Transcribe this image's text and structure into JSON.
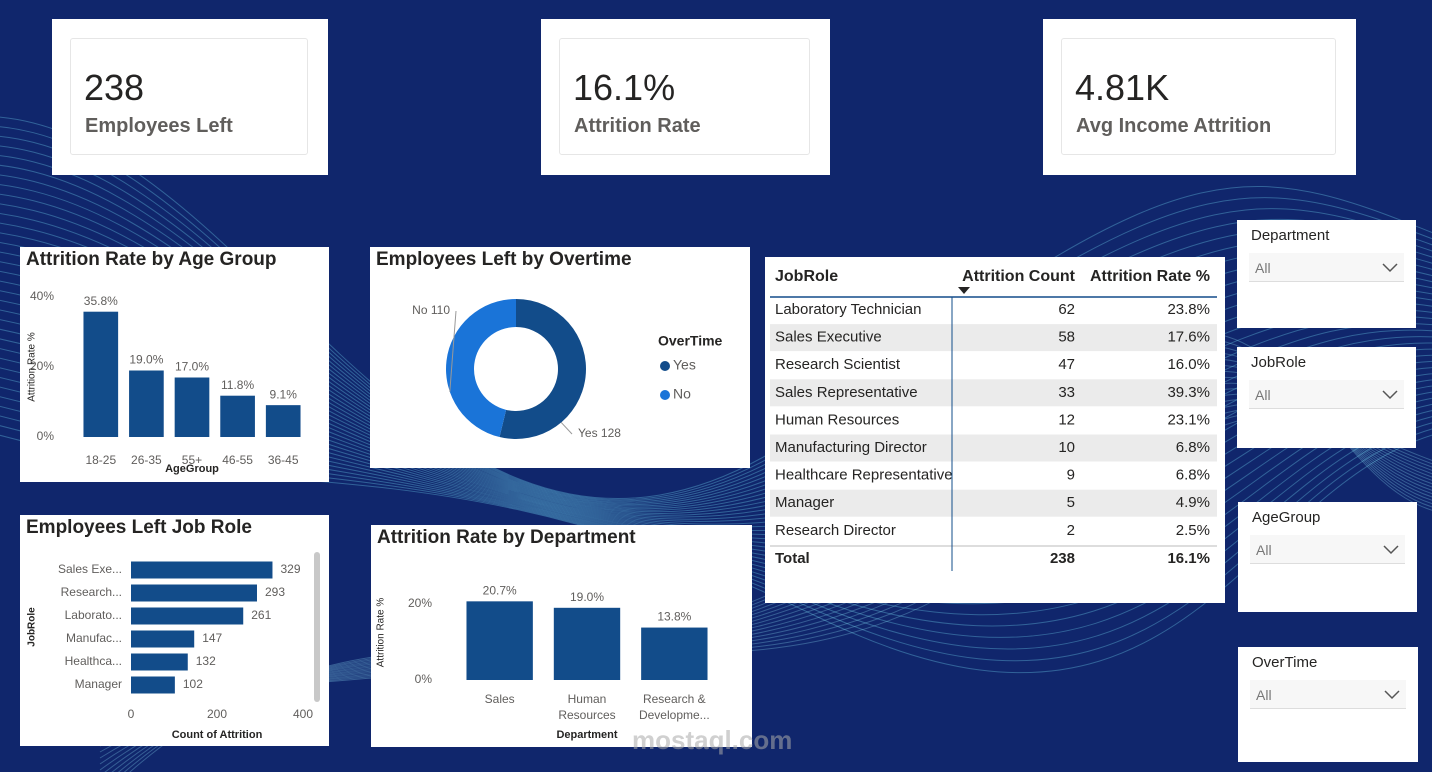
{
  "cards": [
    {
      "value": "238",
      "label": "Employees Left"
    },
    {
      "value": "16.1%",
      "label": "Attrition Rate"
    },
    {
      "value": "4.81K",
      "label": "Avg Income Attrition"
    }
  ],
  "chart_data": [
    {
      "type": "bar",
      "title": "Attrition Rate by Age Group",
      "x_label": "AgeGroup",
      "y_label": "Attrition Rate %",
      "categories": [
        "18-25",
        "26-35",
        "55+",
        "46-55",
        "36-45"
      ],
      "values": [
        35.8,
        19.0,
        17.0,
        11.8,
        9.1
      ],
      "value_labels": [
        "35.8%",
        "19.0%",
        "17.0%",
        "11.8%",
        "9.1%"
      ],
      "color": "#124c8a",
      "ylim": [
        0,
        40
      ],
      "yticks": [
        {
          "value": 0,
          "label": "0%"
        },
        {
          "value": 20,
          "label": "20%"
        },
        {
          "value": 40,
          "label": "40%"
        }
      ],
      "grid": false
    },
    {
      "type": "donut",
      "title": "Employees Left by Overtime",
      "legend_title": "OverTime",
      "categories": [
        "Yes",
        "No"
      ],
      "values": [
        128,
        110
      ],
      "colors": [
        "#124c8a",
        "#1a74d8"
      ]
    },
    {
      "type": "bar",
      "horizontal": true,
      "title": "Employees Left Job Role",
      "x_label": "Count of Attrition",
      "y_label": "JobRole",
      "categories": [
        "Sales Exe...",
        "Research...",
        "Laborato...",
        "Manufac...",
        "Healthca...",
        "Manager"
      ],
      "values": [
        329,
        293,
        261,
        147,
        132,
        102
      ],
      "color": "#124c8a",
      "xlim": [
        0,
        400
      ],
      "xticks": [
        0,
        200,
        400
      ],
      "grid": false
    },
    {
      "type": "bar",
      "title": "Attrition Rate by Department",
      "x_label": "Department",
      "y_label": "Attrition Rate %",
      "categories": [
        "Sales",
        "Human Resources",
        "Research & Developme..."
      ],
      "values": [
        20.7,
        19.0,
        13.8
      ],
      "value_labels": [
        "20.7%",
        "19.0%",
        "13.8%"
      ],
      "color": "#124c8a",
      "ylim": [
        0,
        25
      ],
      "yticks": [
        {
          "value": 0,
          "label": "0%"
        },
        {
          "value": 20,
          "label": "20%"
        }
      ],
      "grid": false
    }
  ],
  "table": {
    "columns": [
      "JobRole",
      "Attrition Count",
      "Attrition Rate %"
    ],
    "rows": [
      [
        "Laboratory Technician",
        "62",
        "23.8%"
      ],
      [
        "Sales Executive",
        "58",
        "17.6%"
      ],
      [
        "Research Scientist",
        "47",
        "16.0%"
      ],
      [
        "Sales Representative",
        "33",
        "39.3%"
      ],
      [
        "Human Resources",
        "12",
        "23.1%"
      ],
      [
        "Manufacturing Director",
        "10",
        "6.8%"
      ],
      [
        "Healthcare Representative",
        "9",
        "6.8%"
      ],
      [
        "Manager",
        "5",
        "4.9%"
      ],
      [
        "Research Director",
        "2",
        "2.5%"
      ]
    ],
    "total": [
      "Total",
      "238",
      "16.1%"
    ]
  },
  "slicers": [
    {
      "title": "Department",
      "value": "All"
    },
    {
      "title": "JobRole",
      "value": "All"
    },
    {
      "title": "AgeGroup",
      "value": "All"
    },
    {
      "title": "OverTime",
      "value": "All"
    }
  ],
  "watermark": "mostaql.com"
}
